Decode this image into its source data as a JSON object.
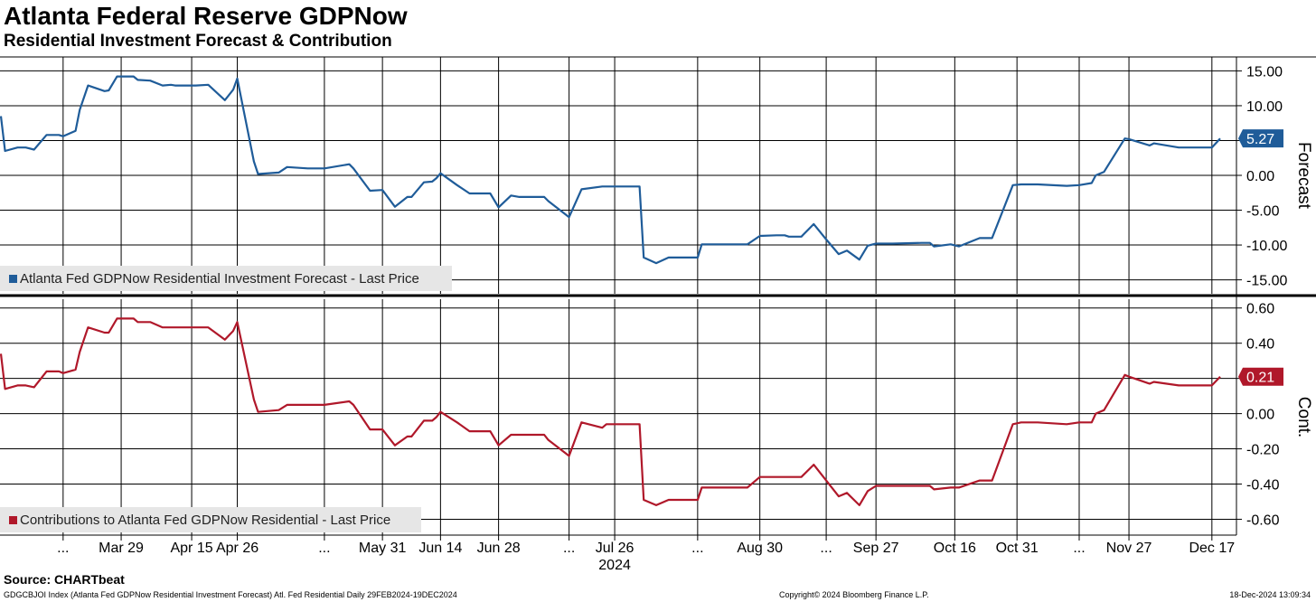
{
  "header": {
    "title": "Atlanta Federal Reserve GDPNow",
    "subtitle": "Residential Investment Forecast & Contribution"
  },
  "footer": {
    "source": "Source: CHARTbeat",
    "index_note": "GDGCBJOI Index (Atlanta Fed GDPNow Residential Investment Forecast) Atl. Fed Residential  Daily 29FEB2024-19DEC2024",
    "copyright": "Copyright© 2024 Bloomberg Finance L.P.",
    "timestamp": "18-Dec-2024 13:09:34"
  },
  "chart_data": [
    {
      "type": "line",
      "panel": "top",
      "ylabel": "Forecast",
      "ylim": [
        -17,
        17
      ],
      "yticks": [
        15,
        10,
        5,
        0,
        -5,
        -10,
        -15
      ],
      "ytick_labels": [
        "15.00",
        "10.00",
        "5.00",
        "0.00",
        "-5.00",
        "-10.00",
        "-15.00"
      ],
      "legend": "Atlanta Fed GDPNow Residential Investment Forecast - Last Price",
      "legend_position": "bottom-left",
      "color": "#1f5c99",
      "last_value_label": "5.27",
      "grid": true,
      "series": [
        {
          "name": "Atlanta Fed GDPNow Residential Investment Forecast - Last Price",
          "x": [
            "2024-02-29",
            "2024-03-01",
            "2024-03-04",
            "2024-03-06",
            "2024-03-08",
            "2024-03-11",
            "2024-03-14",
            "2024-03-15",
            "2024-03-18",
            "2024-03-19",
            "2024-03-21",
            "2024-03-25",
            "2024-03-26",
            "2024-03-28",
            "2024-04-01",
            "2024-04-02",
            "2024-04-05",
            "2024-04-08",
            "2024-04-10",
            "2024-04-11",
            "2024-04-16",
            "2024-04-19",
            "2024-04-23",
            "2024-04-25",
            "2024-04-26",
            "2024-04-30",
            "2024-05-01",
            "2024-05-06",
            "2024-05-08",
            "2024-05-13",
            "2024-05-15",
            "2024-05-17",
            "2024-05-23",
            "2024-05-24",
            "2024-05-28",
            "2024-05-31",
            "2024-06-03",
            "2024-06-06",
            "2024-06-07",
            "2024-06-10",
            "2024-06-12",
            "2024-06-13",
            "2024-06-14",
            "2024-06-18",
            "2024-06-21",
            "2024-06-26",
            "2024-06-28",
            "2024-07-01",
            "2024-07-03",
            "2024-07-09",
            "2024-07-10",
            "2024-07-15",
            "2024-07-18",
            "2024-07-23",
            "2024-07-24",
            "2024-07-25",
            "2024-08-01",
            "2024-08-02",
            "2024-08-05",
            "2024-08-08",
            "2024-08-15",
            "2024-08-16",
            "2024-08-27",
            "2024-08-30",
            "2024-09-03",
            "2024-09-05",
            "2024-09-06",
            "2024-09-09",
            "2024-09-12",
            "2024-09-15",
            "2024-09-18",
            "2024-09-20",
            "2024-09-23",
            "2024-09-25",
            "2024-09-27",
            "2024-10-01",
            "2024-10-08",
            "2024-10-10",
            "2024-10-11",
            "2024-10-15",
            "2024-10-17",
            "2024-10-22",
            "2024-10-25",
            "2024-10-30",
            "2024-11-01",
            "2024-11-05",
            "2024-11-12",
            "2024-11-15",
            "2024-11-18",
            "2024-11-19",
            "2024-11-21",
            "2024-11-26",
            "2024-11-27",
            "2024-12-02",
            "2024-12-03",
            "2024-12-09",
            "2024-12-10",
            "2024-12-17",
            "2024-12-19"
          ],
          "values": [
            8.5,
            3.5,
            4.0,
            4.0,
            3.7,
            5.8,
            5.8,
            5.6,
            6.4,
            9.4,
            12.9,
            12.1,
            12.2,
            14.2,
            14.2,
            13.7,
            13.6,
            12.9,
            13.0,
            12.9,
            12.9,
            13.0,
            10.8,
            12.3,
            13.9,
            2.0,
            0.2,
            0.4,
            1.2,
            1.0,
            1.0,
            1.0,
            1.6,
            1.0,
            -2.2,
            -2.1,
            -4.5,
            -3.1,
            -3.1,
            -1.0,
            -0.9,
            -0.4,
            0.3,
            -1.4,
            -2.6,
            -2.6,
            -4.6,
            -2.9,
            -3.1,
            -3.1,
            -3.7,
            -6.0,
            -2.0,
            -1.6,
            -1.6,
            -1.6,
            -1.6,
            -11.8,
            -12.6,
            -11.8,
            -11.8,
            -9.9,
            -9.9,
            -8.7,
            -8.6,
            -8.6,
            -8.8,
            -8.8,
            -7.0,
            -9.2,
            -11.3,
            -10.8,
            -12.1,
            -10.1,
            -9.8,
            -9.8,
            -9.7,
            -9.7,
            -10.2,
            -9.9,
            -10.2,
            -9.0,
            -9.0,
            -1.4,
            -1.3,
            -1.3,
            -1.5,
            -1.4,
            -1.1,
            0.0,
            0.5,
            5.3,
            5.2,
            4.3,
            4.6,
            4.0,
            4.0,
            4.0,
            5.3
          ]
        }
      ]
    },
    {
      "type": "line",
      "panel": "bottom",
      "ylabel": "Cont.",
      "ylim": [
        -0.69,
        0.65
      ],
      "yticks": [
        0.6,
        0.4,
        0.2,
        0.0,
        -0.2,
        -0.4,
        -0.6
      ],
      "ytick_labels": [
        "0.60",
        "0.40",
        "0.20",
        "0.00",
        "-0.20",
        "-0.40",
        "-0.60"
      ],
      "legend": "Contributions to Atlanta Fed GDPNow Residential - Last Price",
      "legend_position": "bottom-left",
      "color": "#b0182a",
      "last_value_label": "0.21",
      "grid": true,
      "series": [
        {
          "name": "Contributions to Atlanta Fed GDPNow Residential - Last Price",
          "x": [
            "2024-02-29",
            "2024-03-01",
            "2024-03-04",
            "2024-03-06",
            "2024-03-08",
            "2024-03-11",
            "2024-03-14",
            "2024-03-15",
            "2024-03-18",
            "2024-03-19",
            "2024-03-21",
            "2024-03-25",
            "2024-03-26",
            "2024-03-28",
            "2024-04-01",
            "2024-04-02",
            "2024-04-05",
            "2024-04-08",
            "2024-04-10",
            "2024-04-11",
            "2024-04-16",
            "2024-04-19",
            "2024-04-23",
            "2024-04-25",
            "2024-04-26",
            "2024-04-30",
            "2024-05-01",
            "2024-05-06",
            "2024-05-08",
            "2024-05-13",
            "2024-05-15",
            "2024-05-17",
            "2024-05-23",
            "2024-05-24",
            "2024-05-28",
            "2024-05-31",
            "2024-06-03",
            "2024-06-06",
            "2024-06-07",
            "2024-06-10",
            "2024-06-12",
            "2024-06-13",
            "2024-06-14",
            "2024-06-18",
            "2024-06-21",
            "2024-06-26",
            "2024-06-28",
            "2024-07-01",
            "2024-07-03",
            "2024-07-09",
            "2024-07-10",
            "2024-07-15",
            "2024-07-18",
            "2024-07-23",
            "2024-07-24",
            "2024-07-25",
            "2024-08-01",
            "2024-08-02",
            "2024-08-05",
            "2024-08-08",
            "2024-08-15",
            "2024-08-16",
            "2024-08-27",
            "2024-08-30",
            "2024-09-03",
            "2024-09-05",
            "2024-09-06",
            "2024-09-09",
            "2024-09-12",
            "2024-09-15",
            "2024-09-18",
            "2024-09-20",
            "2024-09-23",
            "2024-09-25",
            "2024-09-27",
            "2024-10-01",
            "2024-10-08",
            "2024-10-10",
            "2024-10-11",
            "2024-10-15",
            "2024-10-17",
            "2024-10-22",
            "2024-10-25",
            "2024-10-30",
            "2024-11-01",
            "2024-11-05",
            "2024-11-12",
            "2024-11-15",
            "2024-11-18",
            "2024-11-19",
            "2024-11-21",
            "2024-11-26",
            "2024-11-27",
            "2024-12-02",
            "2024-12-03",
            "2024-12-09",
            "2024-12-10",
            "2024-12-17",
            "2024-12-19"
          ],
          "values": [
            0.34,
            0.14,
            0.16,
            0.16,
            0.15,
            0.24,
            0.24,
            0.23,
            0.25,
            0.35,
            0.49,
            0.46,
            0.46,
            0.54,
            0.54,
            0.52,
            0.52,
            0.49,
            0.49,
            0.49,
            0.49,
            0.49,
            0.42,
            0.47,
            0.52,
            0.08,
            0.01,
            0.02,
            0.05,
            0.05,
            0.05,
            0.05,
            0.07,
            0.05,
            -0.09,
            -0.09,
            -0.18,
            -0.13,
            -0.13,
            -0.04,
            -0.04,
            -0.02,
            0.01,
            -0.05,
            -0.1,
            -0.1,
            -0.18,
            -0.12,
            -0.12,
            -0.12,
            -0.15,
            -0.24,
            -0.05,
            -0.08,
            -0.06,
            -0.06,
            -0.06,
            -0.49,
            -0.52,
            -0.49,
            -0.49,
            -0.42,
            -0.42,
            -0.36,
            -0.36,
            -0.36,
            -0.36,
            -0.36,
            -0.29,
            -0.38,
            -0.47,
            -0.45,
            -0.52,
            -0.44,
            -0.41,
            -0.41,
            -0.41,
            -0.41,
            -0.43,
            -0.42,
            -0.42,
            -0.38,
            -0.38,
            -0.06,
            -0.05,
            -0.05,
            -0.06,
            -0.05,
            -0.05,
            0.0,
            0.02,
            0.22,
            0.21,
            0.17,
            0.18,
            0.16,
            0.16,
            0.16,
            0.21
          ]
        }
      ]
    }
  ],
  "x_axis": {
    "tick_labels": [
      "...",
      "Mar 29",
      "Apr 15",
      "Apr 26",
      "...",
      "May 31",
      "Jun 14",
      "Jun 28",
      "...",
      "Jul 26",
      "...",
      "Aug 30",
      "...",
      "Sep 27",
      "Oct 16",
      "Oct 31",
      "...",
      "Nov 27",
      "Dec 17"
    ],
    "tick_dates": [
      "2024-03-15",
      "2024-03-29",
      "2024-04-15",
      "2024-04-26",
      "2024-05-17",
      "2024-05-31",
      "2024-06-14",
      "2024-06-28",
      "2024-07-15",
      "2024-07-26",
      "2024-08-15",
      "2024-08-30",
      "2024-09-15",
      "2024-09-27",
      "2024-10-16",
      "2024-10-31",
      "2024-11-15",
      "2024-11-27",
      "2024-12-17"
    ],
    "year_label": "2024"
  }
}
